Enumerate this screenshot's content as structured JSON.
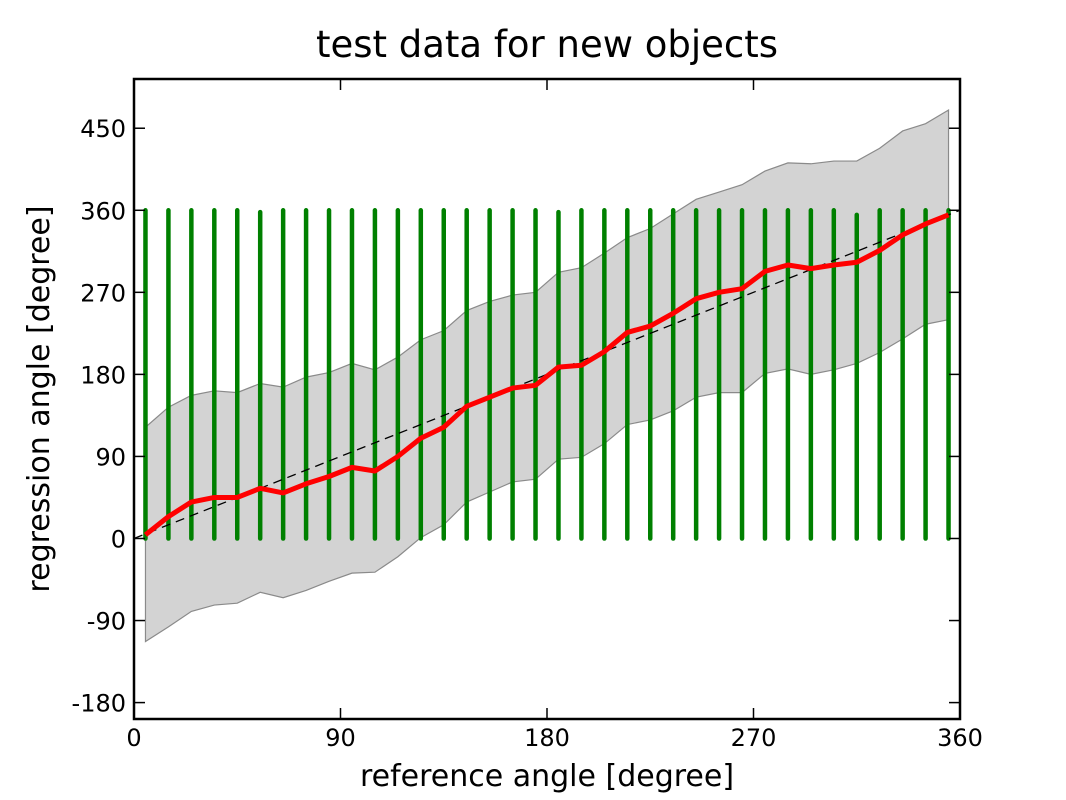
{
  "chart_data": {
    "type": "line",
    "title": "test data for new objects",
    "xlabel": "reference angle [degree]",
    "ylabel": "regression angle [degree]",
    "xlim": [
      0,
      360
    ],
    "ylim": [
      -198,
      504
    ],
    "xticks": [
      0,
      90,
      180,
      270,
      360
    ],
    "yticks": [
      -180,
      -90,
      0,
      90,
      180,
      270,
      360,
      450
    ],
    "grid": false,
    "legend": "none",
    "x": [
      5,
      15,
      25,
      35,
      45,
      55,
      65,
      75,
      85,
      95,
      105,
      115,
      125,
      135,
      145,
      155,
      165,
      175,
      185,
      195,
      205,
      215,
      225,
      235,
      245,
      255,
      265,
      275,
      285,
      295,
      305,
      315,
      325,
      335,
      345,
      355
    ],
    "series": [
      {
        "role": "mean",
        "color": "#ff0000",
        "values": [
          4,
          24,
          40,
          45,
          45,
          55,
          50,
          60,
          68,
          78,
          74,
          90,
          110,
          122,
          145,
          155,
          165,
          168,
          188,
          190,
          205,
          226,
          233,
          247,
          263,
          270,
          274,
          293,
          300,
          296,
          300,
          303,
          316,
          333,
          345,
          355
        ]
      },
      {
        "role": "band-upper",
        "color": "#d3d3d3",
        "values": [
          122,
          144,
          157,
          162,
          160,
          170,
          166,
          177,
          182,
          192,
          185,
          199,
          218,
          228,
          250,
          260,
          267,
          270,
          292,
          297,
          313,
          330,
          340,
          356,
          372,
          380,
          388,
          403,
          412,
          411,
          414,
          414,
          428,
          447,
          455,
          470
        ]
      },
      {
        "role": "band-lower",
        "color": "#d3d3d3",
        "values": [
          -113,
          -97,
          -80,
          -73,
          -71,
          -59,
          -65,
          -57,
          -47,
          -38,
          -37,
          -20,
          1,
          15,
          40,
          51,
          62,
          65,
          87,
          89,
          104,
          125,
          130,
          140,
          155,
          160,
          160,
          181,
          186,
          180,
          185,
          192,
          204,
          219,
          235,
          240
        ]
      },
      {
        "role": "identity",
        "color": "#000000",
        "x": [
          0,
          360
        ],
        "values": [
          0,
          360
        ]
      }
    ],
    "scatter": {
      "color": "#008000",
      "x": [
        5,
        15,
        25,
        35,
        45,
        55,
        65,
        75,
        85,
        95,
        105,
        115,
        125,
        135,
        145,
        155,
        165,
        175,
        185,
        195,
        205,
        215,
        225,
        235,
        245,
        255,
        265,
        275,
        285,
        295,
        305,
        315,
        325,
        335,
        345,
        355
      ],
      "y_min": [
        0,
        0,
        0,
        0,
        0,
        0,
        0,
        0,
        0,
        0,
        0,
        0,
        0,
        0,
        0,
        0,
        0,
        0,
        0,
        0,
        0,
        0,
        0,
        0,
        0,
        0,
        0,
        0,
        0,
        0,
        0,
        0,
        0,
        0,
        0,
        0
      ],
      "y_max": [
        360,
        360,
        360,
        360,
        360,
        358,
        360,
        360,
        360,
        360,
        360,
        360,
        360,
        360,
        360,
        360,
        360,
        360,
        358,
        360,
        360,
        360,
        360,
        360,
        360,
        360,
        360,
        360,
        360,
        360,
        360,
        355,
        360,
        360,
        360,
        360
      ]
    }
  }
}
